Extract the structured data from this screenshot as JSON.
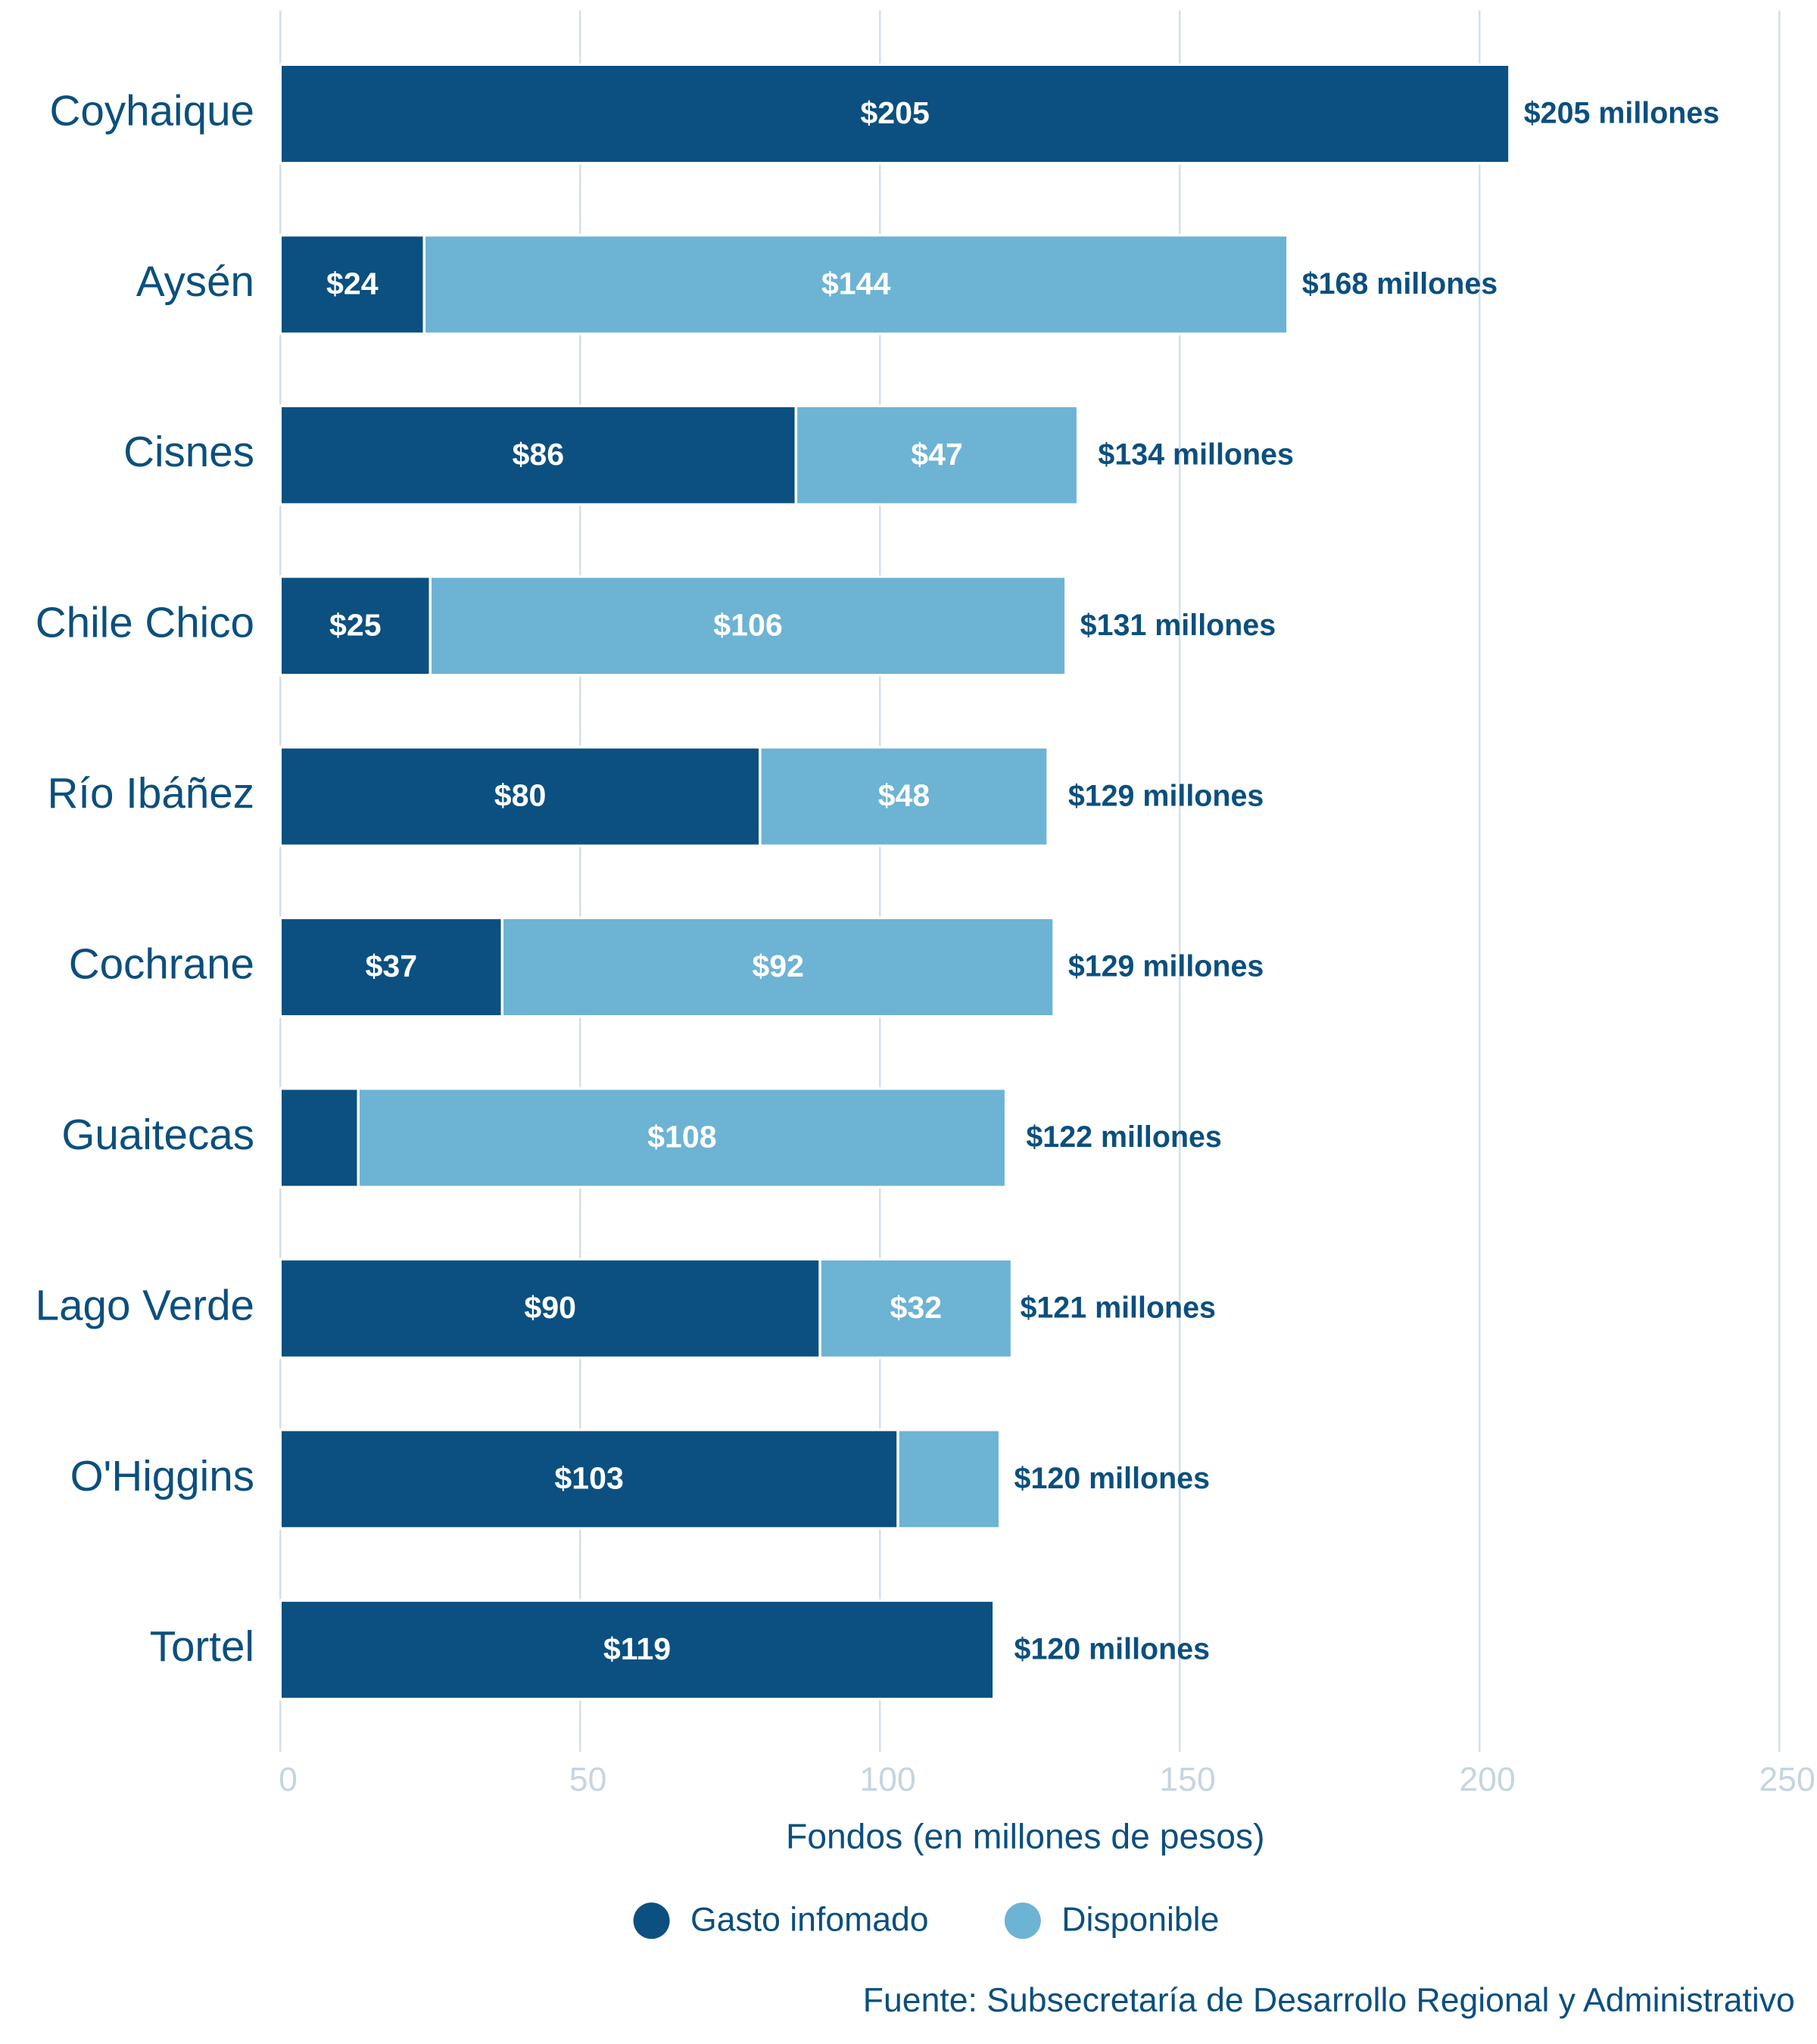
{
  "chart_data": {
    "type": "stacked-barh",
    "categories": [
      "Coyhaique",
      "Aysén",
      "Cisnes",
      "Chile Chico",
      "Río Ibáñez",
      "Cochrane",
      "Guaitecas",
      "Lago Verde",
      "O'Higgins",
      "Tortel"
    ],
    "series": [
      {
        "name": "Gasto infomado",
        "color": "#0b5080",
        "values": [
          205,
          24,
          86,
          25,
          80,
          37,
          13,
          90,
          103,
          119
        ],
        "value_labels": [
          "$205",
          "$24",
          "$86",
          "$25",
          "$80",
          "$37",
          null,
          "$90",
          "$103",
          "$119"
        ]
      },
      {
        "name": "Disponible",
        "color": "#6db3d4",
        "values": [
          0,
          144,
          47,
          106,
          48,
          92,
          108,
          32,
          17,
          0
        ],
        "value_labels": [
          null,
          "$144",
          "$47",
          "$106",
          "$48",
          "$92",
          "$108",
          "$32",
          null,
          null
        ]
      }
    ],
    "totals": {
      "values": [
        205,
        168,
        134,
        131,
        129,
        129,
        122,
        121,
        120,
        120
      ],
      "value_labels": [
        "$205 millones",
        "$168 millones",
        "$134 millones",
        "$131 millones",
        "$129 millones",
        "$129 millones",
        "$122 millones",
        "$121 millones",
        "$120 millones",
        "$120 millones"
      ]
    },
    "xlim": [
      0,
      250
    ],
    "xticks": [
      0,
      50,
      100,
      150,
      200,
      250
    ],
    "xlabel": "Fondos (en millones de pesos)",
    "source": "Fuente: Subsecretaría de Desarrollo Regional y Administrativo",
    "grid": true,
    "legend": "bottom"
  }
}
